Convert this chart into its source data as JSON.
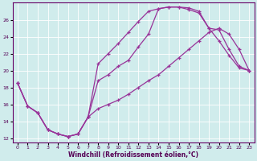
{
  "xlabel": "Windchill (Refroidissement éolien,°C)",
  "bg_color": "#d0ecec",
  "line_color": "#993399",
  "xlim": [
    -0.5,
    23.5
  ],
  "ylim": [
    11.5,
    28.0
  ],
  "yticks": [
    12,
    14,
    16,
    18,
    20,
    22,
    24,
    26
  ],
  "xticks": [
    0,
    1,
    2,
    3,
    4,
    5,
    6,
    7,
    8,
    9,
    10,
    11,
    12,
    13,
    14,
    15,
    16,
    17,
    18,
    19,
    20,
    21,
    22,
    23
  ],
  "lineA_x": [
    0,
    1,
    2,
    3,
    4,
    5,
    6,
    7,
    8,
    9,
    10,
    11,
    12,
    13,
    14,
    15,
    16,
    17,
    18,
    19,
    20,
    21,
    22,
    23
  ],
  "lineA_y": [
    18.5,
    15.8,
    15.0,
    13.0,
    12.5,
    12.2,
    12.5,
    14.5,
    20.8,
    22.0,
    23.2,
    24.5,
    25.8,
    27.0,
    27.3,
    27.5,
    27.5,
    27.4,
    27.0,
    25.0,
    24.8,
    22.5,
    20.5,
    20.0
  ],
  "lineB_x": [
    0,
    1,
    2,
    3,
    4,
    5,
    6,
    7,
    8,
    9,
    10,
    11,
    12,
    13,
    14,
    15,
    16,
    17,
    18,
    19,
    20,
    21,
    22,
    23
  ],
  "lineB_y": [
    18.5,
    15.8,
    15.0,
    13.0,
    12.5,
    12.2,
    12.5,
    14.5,
    18.8,
    19.5,
    20.5,
    21.2,
    22.8,
    24.3,
    27.3,
    27.5,
    27.5,
    27.2,
    26.8,
    25.0,
    23.5,
    21.8,
    20.3,
    20.0
  ],
  "lineC_x": [
    0,
    1,
    2,
    3,
    4,
    5,
    6,
    7,
    8,
    9,
    10,
    11,
    12,
    13,
    14,
    15,
    16,
    17,
    18,
    19,
    20,
    21,
    22,
    23
  ],
  "lineC_y": [
    18.5,
    15.8,
    15.0,
    13.0,
    12.5,
    12.2,
    12.5,
    14.5,
    15.5,
    16.0,
    16.5,
    17.2,
    18.0,
    18.8,
    19.5,
    20.5,
    21.5,
    22.5,
    23.5,
    24.5,
    25.0,
    24.3,
    22.5,
    20.0
  ]
}
